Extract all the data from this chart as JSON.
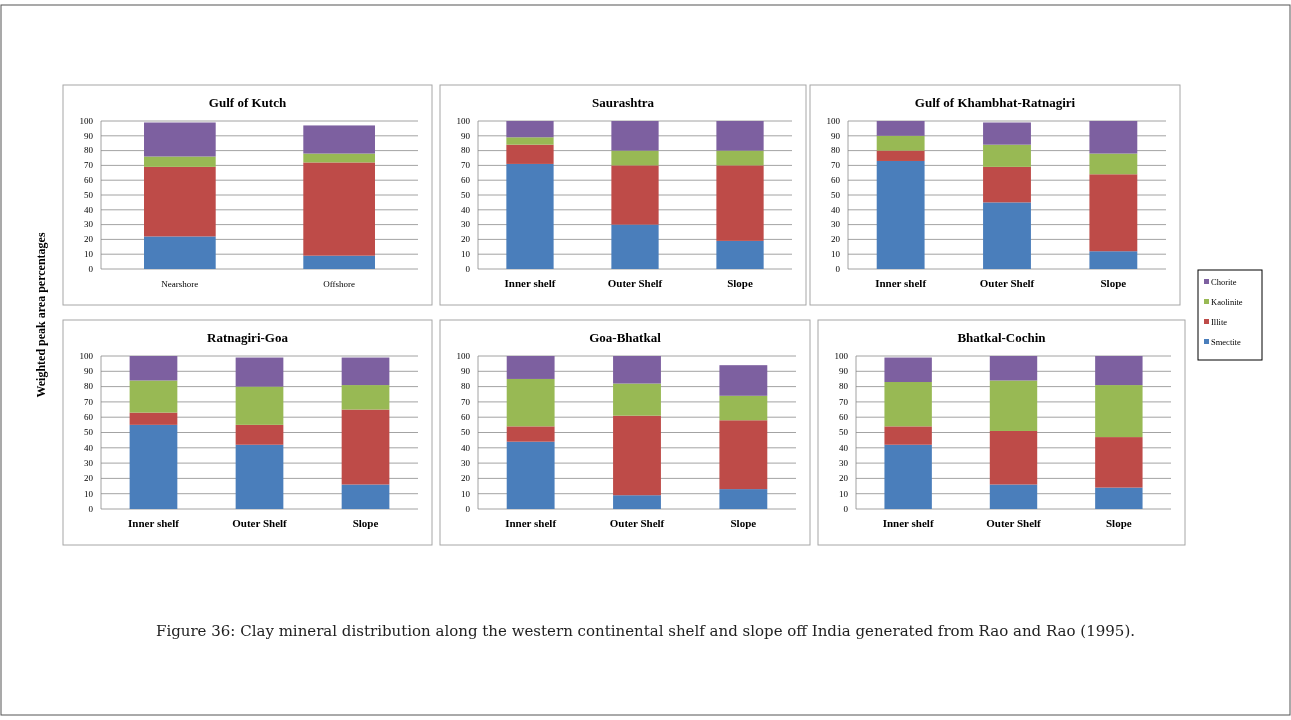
{
  "chart_data": [
    {
      "type": "bar",
      "title": "Gulf of Kutch",
      "ylabel": "Weighted peak area percentages",
      "categories": [
        "Nearshore",
        "Offshore"
      ],
      "stacked": true,
      "ylim": [
        0,
        100
      ],
      "yticks": [
        0,
        10,
        20,
        30,
        40,
        50,
        60,
        70,
        80,
        90,
        100
      ],
      "grid": "y",
      "series": [
        {
          "color": "#4a7ebb",
          "values": [
            22,
            9
          ]
        },
        {
          "color": "#be4b48",
          "values": [
            47,
            63
          ]
        },
        {
          "color": "#98b954",
          "values": [
            7,
            6
          ]
        },
        {
          "color": "#7d60a0",
          "values": [
            23,
            19
          ]
        }
      ]
    },
    {
      "type": "bar",
      "title": "Saurashtra",
      "categories": [
        "Inner shelf",
        "Outer Shelf",
        "Slope"
      ],
      "stacked": true,
      "ylim": [
        0,
        100
      ],
      "yticks": [
        0,
        10,
        20,
        30,
        40,
        50,
        60,
        70,
        80,
        90,
        100
      ],
      "grid": "y",
      "series": [
        {
          "color": "#4a7ebb",
          "values": [
            71,
            30,
            19
          ]
        },
        {
          "color": "#be4b48",
          "values": [
            13,
            40,
            51
          ]
        },
        {
          "color": "#98b954",
          "values": [
            5,
            10,
            10
          ]
        },
        {
          "color": "#7d60a0",
          "values": [
            11,
            20,
            20
          ]
        }
      ]
    },
    {
      "type": "bar",
      "title": "Gulf of Khambhat-Ratnagiri",
      "categories": [
        "Inner shelf",
        "Outer Shelf",
        "Slope"
      ],
      "stacked": true,
      "ylim": [
        0,
        100
      ],
      "yticks": [
        0,
        10,
        20,
        30,
        40,
        50,
        60,
        70,
        80,
        90,
        100
      ],
      "grid": "y",
      "legend": "right",
      "series": [
        {
          "name": "Smectite",
          "color": "#4a7ebb",
          "values": [
            73,
            45,
            12
          ]
        },
        {
          "name": "Illite",
          "color": "#be4b48",
          "values": [
            7,
            24,
            52
          ]
        },
        {
          "name": "Kaolinite",
          "color": "#98b954",
          "values": [
            10,
            15,
            14
          ]
        },
        {
          "name": "Chorite",
          "color": "#7d60a0",
          "values": [
            10,
            15,
            22
          ]
        }
      ]
    },
    {
      "type": "bar",
      "title": "Ratnagiri-Goa",
      "categories": [
        "Inner shelf",
        "Outer Shelf",
        "Slope"
      ],
      "stacked": true,
      "ylim": [
        0,
        100
      ],
      "yticks": [
        0,
        10,
        20,
        30,
        40,
        50,
        60,
        70,
        80,
        90,
        100
      ],
      "grid": "y",
      "series": [
        {
          "color": "#4a7ebb",
          "values": [
            55,
            42,
            16
          ]
        },
        {
          "color": "#be4b48",
          "values": [
            8,
            13,
            49
          ]
        },
        {
          "color": "#98b954",
          "values": [
            21,
            25,
            16
          ]
        },
        {
          "color": "#7d60a0",
          "values": [
            16,
            19,
            18
          ]
        }
      ]
    },
    {
      "type": "bar",
      "title": "Goa-Bhatkal",
      "categories": [
        "Inner shelf",
        "Outer Shelf",
        "Slope"
      ],
      "stacked": true,
      "ylim": [
        0,
        100
      ],
      "yticks": [
        0,
        10,
        20,
        30,
        40,
        50,
        60,
        70,
        80,
        90,
        100
      ],
      "grid": "y",
      "series": [
        {
          "color": "#4a7ebb",
          "values": [
            44,
            9,
            13
          ]
        },
        {
          "color": "#be4b48",
          "values": [
            10,
            52,
            45
          ]
        },
        {
          "color": "#98b954",
          "values": [
            31,
            21,
            16
          ]
        },
        {
          "color": "#7d60a0",
          "values": [
            15,
            18,
            20
          ]
        }
      ]
    },
    {
      "type": "bar",
      "title": "Bhatkal-Cochin",
      "categories": [
        "Inner shelf",
        "Outer Shelf",
        "Slope"
      ],
      "stacked": true,
      "ylim": [
        0,
        100
      ],
      "yticks": [
        0,
        10,
        20,
        30,
        40,
        50,
        60,
        70,
        80,
        90,
        100
      ],
      "grid": "y",
      "annotations": [
        "Figure 36: Clay mineral distribution along the western continental shelf and slope off India generated from Rao and Rao (1995)."
      ],
      "series": [
        {
          "color": "#4a7ebb",
          "values": [
            42,
            16,
            14
          ]
        },
        {
          "color": "#be4b48",
          "values": [
            12,
            35,
            33
          ]
        },
        {
          "color": "#98b954",
          "values": [
            29,
            33,
            34
          ]
        },
        {
          "color": "#7d60a0",
          "values": [
            16,
            16,
            19
          ]
        }
      ]
    }
  ]
}
